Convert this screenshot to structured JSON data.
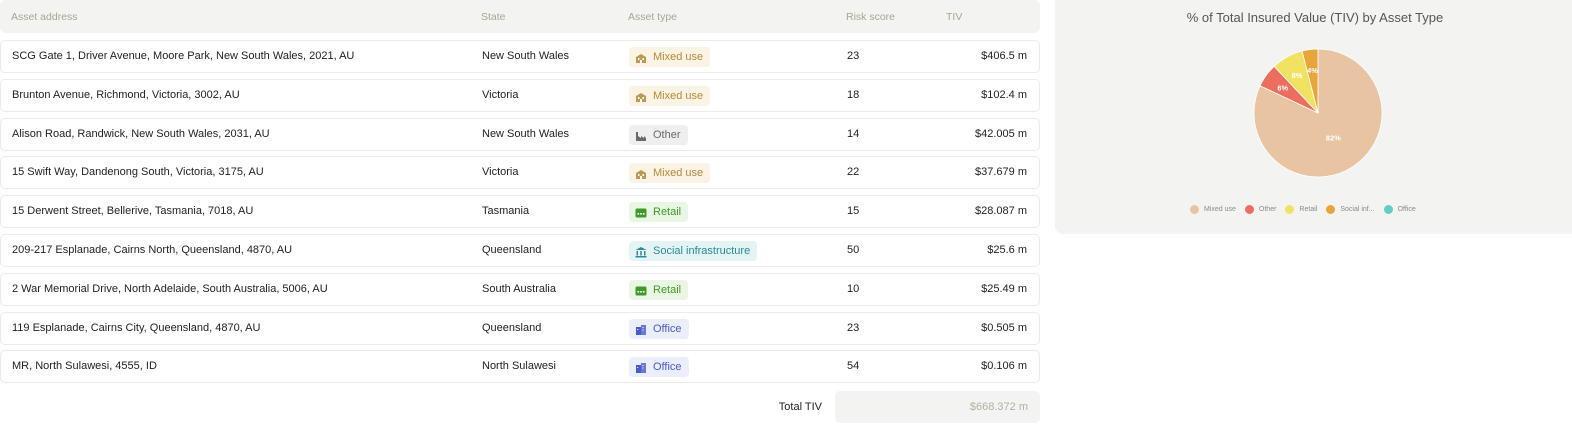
{
  "table": {
    "headers": {
      "address": "Asset address",
      "state": "State",
      "type": "Asset type",
      "risk": "Risk score",
      "tiv": "TIV"
    },
    "rows": [
      {
        "address": "SCG Gate 1, Driver Avenue, Moore Park, New South Wales, 2021, AU",
        "state": "New South Wales",
        "type": "Mixed use",
        "type_key": "mixed",
        "icon": "building-icon",
        "risk": "23",
        "tiv": "$406.5 m"
      },
      {
        "address": "Brunton Avenue, Richmond, Victoria, 3002, AU",
        "state": "Victoria",
        "type": "Mixed use",
        "type_key": "mixed",
        "icon": "building-icon",
        "risk": "18",
        "tiv": "$102.4 m"
      },
      {
        "address": "Alison Road, Randwick, New South Wales, 2031, AU",
        "state": "New South Wales",
        "type": "Other",
        "type_key": "other",
        "icon": "factory-icon",
        "risk": "14",
        "tiv": "$42.005 m"
      },
      {
        "address": "15 Swift Way, Dandenong South, Victoria, 3175, AU",
        "state": "Victoria",
        "type": "Mixed use",
        "type_key": "mixed",
        "icon": "building-icon",
        "risk": "22",
        "tiv": "$37.679 m"
      },
      {
        "address": "15 Derwent Street, Bellerive, Tasmania, 7018, AU",
        "state": "Tasmania",
        "type": "Retail",
        "type_key": "retail",
        "icon": "store-icon",
        "risk": "15",
        "tiv": "$28.087 m"
      },
      {
        "address": "209-217 Esplanade, Cairns North, Queensland, 4870, AU",
        "state": "Queensland",
        "type": "Social infrastructure",
        "type_key": "social",
        "icon": "institution-icon",
        "risk": "50",
        "tiv": "$25.6 m"
      },
      {
        "address": "2 War Memorial Drive, North Adelaide, South Australia, 5006, AU",
        "state": "South Australia",
        "type": "Retail",
        "type_key": "retail",
        "icon": "store-icon",
        "risk": "10",
        "tiv": "$25.49 m"
      },
      {
        "address": "119 Esplanade, Cairns City, Queensland, 4870, AU",
        "state": "Queensland",
        "type": "Office",
        "type_key": "office",
        "icon": "office-icon",
        "risk": "23",
        "tiv": "$0.505 m"
      },
      {
        "address": "MR, North Sulawesi, 4555, ID",
        "state": "North Sulawesi",
        "type": "Office",
        "type_key": "office",
        "icon": "office-icon",
        "risk": "54",
        "tiv": "$0.106 m"
      }
    ],
    "total_label": "Total TIV",
    "total_value": "$668.372 m"
  },
  "colors": {
    "mixed": "#e8c4a2",
    "other": "#ec6e5e",
    "retail": "#f2e262",
    "social": "#e9a53a",
    "office": "#5ecfc4"
  },
  "chart_data": {
    "type": "pie",
    "title": "% of Total Insured Value (TIV) by Asset Type",
    "slices": [
      {
        "name": "Mixed use",
        "value": 82,
        "label": "82%",
        "color": "#e8c4a2"
      },
      {
        "name": "Other",
        "value": 6,
        "label": "6%",
        "color": "#ec6e5e"
      },
      {
        "name": "Retail",
        "value": 8,
        "label": "8%",
        "color": "#f2e262"
      },
      {
        "name": "Social inf...",
        "value": 4,
        "label": "4%",
        "color": "#e9a53a"
      },
      {
        "name": "Office",
        "value": 0,
        "label": "",
        "color": "#5ecfc4"
      }
    ],
    "legend": [
      "Mixed use",
      "Other",
      "Retail",
      "Social inf...",
      "Office"
    ],
    "legend_position": "bottom"
  }
}
